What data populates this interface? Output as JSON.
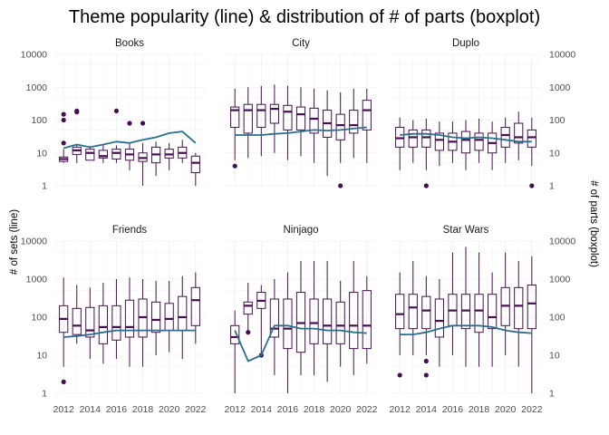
{
  "chart_data": {
    "type": "boxplot+line",
    "title": "Theme popularity (line) & distribution of # of parts (boxplot)",
    "ylabel_left": "# of sets (line)",
    "ylabel_right": "# of parts (boxplot)",
    "y_scale": "log10",
    "ylim": [
      1,
      10000
    ],
    "x_ticks": [
      "2012",
      "2014",
      "2016",
      "2018",
      "2020",
      "2022"
    ],
    "y_ticks": [
      "1",
      "10",
      "100",
      "1000",
      "10000"
    ],
    "years": [
      2012,
      2013,
      2014,
      2015,
      2016,
      2017,
      2018,
      2019,
      2020,
      2021,
      2022
    ],
    "grid": true,
    "line_color": "#2a6f8f",
    "box_color": "#45104f",
    "panels": [
      {
        "name": "Books",
        "line": [
          14,
          18,
          15,
          18,
          22,
          20,
          25,
          30,
          40,
          45,
          20
        ],
        "boxes": [
          {
            "x": 2012,
            "min": 5,
            "q1": 5.5,
            "med": 6.5,
            "q3": 7.5,
            "max": 13,
            "out": [
              20,
              100,
              150
            ]
          },
          {
            "x": 2013,
            "min": 5,
            "q1": 9,
            "med": 12,
            "q3": 15,
            "max": 18,
            "out": [
              175,
              190
            ]
          },
          {
            "x": 2014,
            "min": 6,
            "q1": 6,
            "med": 10,
            "q3": 13,
            "max": 16,
            "out": []
          },
          {
            "x": 2015,
            "min": 5,
            "q1": 7,
            "med": 8,
            "q3": 12,
            "max": 17,
            "out": []
          },
          {
            "x": 2016,
            "min": 5,
            "q1": 6.5,
            "med": 10,
            "q3": 13,
            "max": 17,
            "out": [
              190
            ]
          },
          {
            "x": 2017,
            "min": 3,
            "q1": 6,
            "med": 9,
            "q3": 13,
            "max": 20,
            "out": [
              80
            ]
          },
          {
            "x": 2018,
            "min": 1,
            "q1": 5.5,
            "med": 7,
            "q3": 10,
            "max": 20,
            "out": [
              80
            ]
          },
          {
            "x": 2019,
            "min": 2,
            "q1": 5,
            "med": 9,
            "q3": 15,
            "max": 22,
            "out": []
          },
          {
            "x": 2020,
            "min": 3,
            "q1": 7,
            "med": 9,
            "q3": 13,
            "max": 20,
            "out": []
          },
          {
            "x": 2021,
            "min": 5,
            "q1": 7,
            "med": 10,
            "q3": 15,
            "max": 25,
            "out": []
          },
          {
            "x": 2022,
            "min": 1,
            "q1": 2.5,
            "med": 5,
            "q3": 8,
            "max": 10,
            "out": []
          }
        ]
      },
      {
        "name": "City",
        "line": [
          35,
          35,
          35,
          38,
          40,
          45,
          50,
          48,
          50,
          55,
          60
        ],
        "boxes": [
          {
            "x": 2012,
            "min": 6,
            "q1": 60,
            "med": 200,
            "q3": 250,
            "max": 900,
            "out": [
              4
            ]
          },
          {
            "x": 2013,
            "min": 7,
            "q1": 40,
            "med": 200,
            "q3": 300,
            "max": 1000,
            "out": []
          },
          {
            "x": 2014,
            "min": 8,
            "q1": 60,
            "med": 200,
            "q3": 300,
            "max": 1100,
            "out": []
          },
          {
            "x": 2015,
            "min": 10,
            "q1": 80,
            "med": 220,
            "q3": 300,
            "max": 1200,
            "out": []
          },
          {
            "x": 2016,
            "min": 6,
            "q1": 50,
            "med": 180,
            "q3": 280,
            "max": 1100,
            "out": []
          },
          {
            "x": 2017,
            "min": 8,
            "q1": 50,
            "med": 150,
            "q3": 250,
            "max": 1000,
            "out": []
          },
          {
            "x": 2018,
            "min": 5,
            "q1": 40,
            "med": 110,
            "q3": 230,
            "max": 900,
            "out": []
          },
          {
            "x": 2019,
            "min": 2,
            "q1": 30,
            "med": 80,
            "q3": 200,
            "max": 800,
            "out": []
          },
          {
            "x": 2020,
            "min": 5,
            "q1": 25,
            "med": 70,
            "q3": 150,
            "max": 700,
            "out": [
              1
            ]
          },
          {
            "x": 2021,
            "min": 7,
            "q1": 40,
            "med": 70,
            "q3": 200,
            "max": 900,
            "out": []
          },
          {
            "x": 2022,
            "min": 5,
            "q1": 50,
            "med": 200,
            "q3": 400,
            "max": 900,
            "out": []
          }
        ]
      },
      {
        "name": "Duplo",
        "line": [
          35,
          38,
          38,
          35,
          30,
          28,
          30,
          28,
          25,
          22,
          22
        ],
        "boxes": [
          {
            "x": 2012,
            "min": 3,
            "q1": 15,
            "med": 28,
            "q3": 60,
            "max": 120,
            "out": []
          },
          {
            "x": 2013,
            "min": 5,
            "q1": 15,
            "med": 30,
            "q3": 50,
            "max": 100,
            "out": []
          },
          {
            "x": 2014,
            "min": 3,
            "q1": 15,
            "med": 30,
            "q3": 50,
            "max": 110,
            "out": [
              1
            ]
          },
          {
            "x": 2015,
            "min": 4,
            "q1": 12,
            "med": 25,
            "q3": 40,
            "max": 90,
            "out": []
          },
          {
            "x": 2016,
            "min": 5,
            "q1": 12,
            "med": 22,
            "q3": 40,
            "max": 90,
            "out": []
          },
          {
            "x": 2017,
            "min": 3,
            "q1": 10,
            "med": 25,
            "q3": 45,
            "max": 100,
            "out": []
          },
          {
            "x": 2018,
            "min": 5,
            "q1": 12,
            "med": 25,
            "q3": 40,
            "max": 110,
            "out": []
          },
          {
            "x": 2019,
            "min": 3,
            "q1": 10,
            "med": 20,
            "q3": 40,
            "max": 90,
            "out": []
          },
          {
            "x": 2020,
            "min": 5,
            "q1": 15,
            "med": 35,
            "q3": 60,
            "max": 120,
            "out": []
          },
          {
            "x": 2021,
            "min": 6,
            "q1": 20,
            "med": 30,
            "q3": 80,
            "max": 180,
            "out": []
          },
          {
            "x": 2022,
            "min": 4,
            "q1": 15,
            "med": 30,
            "q3": 50,
            "max": 120,
            "out": [
              1
            ]
          }
        ]
      },
      {
        "name": "Friends",
        "line": [
          30,
          32,
          35,
          40,
          45,
          45,
          45,
          45,
          45,
          45,
          45
        ],
        "boxes": [
          {
            "x": 2012,
            "min": 5,
            "q1": 40,
            "med": 90,
            "q3": 200,
            "max": 1100,
            "out": [
              2
            ]
          },
          {
            "x": 2013,
            "min": 20,
            "q1": 35,
            "med": 60,
            "q3": 170,
            "max": 700,
            "out": []
          },
          {
            "x": 2014,
            "min": 8,
            "q1": 30,
            "med": 45,
            "q3": 180,
            "max": 600,
            "out": []
          },
          {
            "x": 2015,
            "min": 6,
            "q1": 20,
            "med": 55,
            "q3": 200,
            "max": 800,
            "out": []
          },
          {
            "x": 2016,
            "min": 8,
            "q1": 25,
            "med": 55,
            "q3": 200,
            "max": 1000,
            "out": []
          },
          {
            "x": 2017,
            "min": 5,
            "q1": 30,
            "med": 55,
            "q3": 280,
            "max": 1100,
            "out": []
          },
          {
            "x": 2018,
            "min": 5,
            "q1": 30,
            "med": 100,
            "q3": 300,
            "max": 1000,
            "out": []
          },
          {
            "x": 2019,
            "min": 10,
            "q1": 40,
            "med": 85,
            "q3": 250,
            "max": 900,
            "out": []
          },
          {
            "x": 2020,
            "min": 12,
            "q1": 45,
            "med": 90,
            "q3": 230,
            "max": 900,
            "out": []
          },
          {
            "x": 2021,
            "min": 8,
            "q1": 45,
            "med": 100,
            "q3": 350,
            "max": 1200,
            "out": []
          },
          {
            "x": 2022,
            "min": 20,
            "q1": 60,
            "med": 280,
            "q3": 600,
            "max": 1500,
            "out": []
          }
        ]
      },
      {
        "name": "Ninjago",
        "line": [
          45,
          7,
          10,
          60,
          60,
          50,
          50,
          45,
          45,
          40,
          38
        ],
        "boxes": [
          {
            "x": 2012,
            "min": 1,
            "q1": 20,
            "med": 30,
            "q3": 60,
            "max": 150,
            "out": []
          },
          {
            "x": 2013,
            "min": 40,
            "q1": 120,
            "med": 200,
            "q3": 250,
            "max": 800,
            "out": [
              40
            ]
          },
          {
            "x": 2014,
            "min": 10,
            "q1": 170,
            "med": 270,
            "q3": 450,
            "max": 700,
            "out": [
              10
            ]
          },
          {
            "x": 2015,
            "min": 3,
            "q1": 30,
            "med": 50,
            "q3": 300,
            "max": 1000,
            "out": []
          },
          {
            "x": 2016,
            "min": 1,
            "q1": 15,
            "med": 50,
            "q3": 300,
            "max": 1500,
            "out": []
          },
          {
            "x": 2017,
            "min": 3,
            "q1": 12,
            "med": 70,
            "q3": 450,
            "max": 3000,
            "out": []
          },
          {
            "x": 2018,
            "min": 3,
            "q1": 20,
            "med": 70,
            "q3": 300,
            "max": 3000,
            "out": []
          },
          {
            "x": 2019,
            "min": 2,
            "q1": 20,
            "med": 60,
            "q3": 300,
            "max": 3000,
            "out": []
          },
          {
            "x": 2020,
            "min": 5,
            "q1": 20,
            "med": 60,
            "q3": 250,
            "max": 900,
            "out": []
          },
          {
            "x": 2021,
            "min": 3,
            "q1": 15,
            "med": 60,
            "q3": 450,
            "max": 3000,
            "out": []
          },
          {
            "x": 2022,
            "min": 6,
            "q1": 15,
            "med": 60,
            "q3": 500,
            "max": 1200,
            "out": []
          }
        ]
      },
      {
        "name": "Star Wars",
        "line": [
          35,
          35,
          40,
          50,
          60,
          60,
          60,
          55,
          45,
          40,
          38
        ],
        "boxes": [
          {
            "x": 2012,
            "min": 10,
            "q1": 50,
            "med": 120,
            "q3": 400,
            "max": 1500,
            "out": [
              3
            ]
          },
          {
            "x": 2013,
            "min": 10,
            "q1": 50,
            "med": 180,
            "q3": 400,
            "max": 3000,
            "out": []
          },
          {
            "x": 2014,
            "min": 10,
            "q1": 50,
            "med": 150,
            "q3": 350,
            "max": 1200,
            "out": [
              3,
              7
            ]
          },
          {
            "x": 2015,
            "min": 5,
            "q1": 30,
            "med": 80,
            "q3": 300,
            "max": 1000,
            "out": []
          },
          {
            "x": 2016,
            "min": 10,
            "q1": 60,
            "med": 150,
            "q3": 400,
            "max": 5000,
            "out": []
          },
          {
            "x": 2017,
            "min": 5,
            "q1": 50,
            "med": 150,
            "q3": 400,
            "max": 7000,
            "out": []
          },
          {
            "x": 2018,
            "min": 5,
            "q1": 40,
            "med": 150,
            "q3": 400,
            "max": 5000,
            "out": []
          },
          {
            "x": 2019,
            "min": 5,
            "q1": 50,
            "med": 100,
            "q3": 400,
            "max": 1500,
            "out": []
          },
          {
            "x": 2020,
            "min": 10,
            "q1": 60,
            "med": 200,
            "q3": 600,
            "max": 5000,
            "out": []
          },
          {
            "x": 2021,
            "min": 5,
            "q1": 50,
            "med": 200,
            "q3": 600,
            "max": 3000,
            "out": []
          },
          {
            "x": 2022,
            "min": 1,
            "q1": 50,
            "med": 230,
            "q3": 700,
            "max": 4000,
            "out": []
          }
        ]
      }
    ]
  }
}
